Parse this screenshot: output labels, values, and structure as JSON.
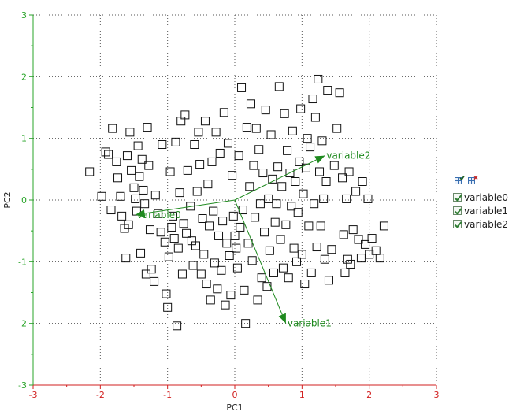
{
  "colors": {
    "axis_x": "#d11f1f",
    "axis_y": "#2aa52a",
    "grid": "#555555",
    "points": "#111111",
    "vectors": "#1f8a1f"
  },
  "legend": {
    "tools": [
      "select-all-icon",
      "deselect-all-icon"
    ],
    "items": [
      {
        "label": "variable0",
        "checked": true
      },
      {
        "label": "variable1",
        "checked": true
      },
      {
        "label": "variable2",
        "checked": true
      }
    ]
  },
  "chart_data": {
    "type": "scatter",
    "title": "",
    "xlabel": "PC1",
    "ylabel": "PC2",
    "xlim": [
      -3,
      3
    ],
    "ylim": [
      -3,
      3
    ],
    "xticks": [
      -3,
      -2,
      -1,
      0,
      1,
      2,
      3
    ],
    "yticks": [
      -3,
      -2,
      -1,
      0,
      1,
      2,
      3
    ],
    "grid": true,
    "legend_position": "right",
    "loading_vectors": [
      {
        "name": "variable0",
        "x": -1.48,
        "y": -0.24
      },
      {
        "name": "variable1",
        "x": 0.76,
        "y": -2.0
      },
      {
        "name": "variable2",
        "x": 1.34,
        "y": 0.72
      }
    ],
    "points": [
      [
        -2.16,
        0.46
      ],
      [
        -1.98,
        0.06
      ],
      [
        -1.92,
        0.78
      ],
      [
        -1.88,
        0.74
      ],
      [
        -1.84,
        -0.16
      ],
      [
        -1.82,
        1.16
      ],
      [
        -1.76,
        0.62
      ],
      [
        -1.74,
        0.36
      ],
      [
        -1.7,
        0.06
      ],
      [
        -1.68,
        -0.26
      ],
      [
        -1.64,
        -0.46
      ],
      [
        -1.62,
        -0.94
      ],
      [
        -1.6,
        0.72
      ],
      [
        -1.58,
        -0.4
      ],
      [
        -1.56,
        1.1
      ],
      [
        -1.54,
        0.48
      ],
      [
        -1.5,
        0.2
      ],
      [
        -1.48,
        0.02
      ],
      [
        -1.46,
        -0.18
      ],
      [
        -1.44,
        0.88
      ],
      [
        -1.42,
        0.38
      ],
      [
        -1.4,
        -0.86
      ],
      [
        -1.38,
        0.66
      ],
      [
        -1.36,
        0.16
      ],
      [
        -1.34,
        -0.06
      ],
      [
        -1.32,
        -1.2
      ],
      [
        -1.3,
        1.18
      ],
      [
        -1.28,
        0.56
      ],
      [
        -1.26,
        -0.48
      ],
      [
        -1.24,
        -1.12
      ],
      [
        -1.2,
        -1.32
      ],
      [
        -1.18,
        0.08
      ],
      [
        -1.14,
        -0.22
      ],
      [
        -1.1,
        -0.52
      ],
      [
        -1.08,
        0.9
      ],
      [
        -1.04,
        -0.68
      ],
      [
        -1.02,
        -1.52
      ],
      [
        -1.0,
        -1.74
      ],
      [
        -0.98,
        -0.92
      ],
      [
        -0.96,
        0.46
      ],
      [
        -0.94,
        -0.44
      ],
      [
        -0.92,
        -0.26
      ],
      [
        -0.9,
        -0.62
      ],
      [
        -0.88,
        0.94
      ],
      [
        -0.86,
        -2.04
      ],
      [
        -0.84,
        -0.78
      ],
      [
        -0.82,
        0.12
      ],
      [
        -0.8,
        1.28
      ],
      [
        -0.78,
        -1.2
      ],
      [
        -0.76,
        -0.38
      ],
      [
        -0.74,
        1.38
      ],
      [
        -0.72,
        -0.54
      ],
      [
        -0.7,
        0.48
      ],
      [
        -0.66,
        -0.1
      ],
      [
        -0.64,
        -0.66
      ],
      [
        -0.62,
        -1.06
      ],
      [
        -0.6,
        0.9
      ],
      [
        -0.58,
        -0.74
      ],
      [
        -0.56,
        0.14
      ],
      [
        -0.54,
        1.1
      ],
      [
        -0.52,
        0.58
      ],
      [
        -0.5,
        -1.2
      ],
      [
        -0.48,
        -0.3
      ],
      [
        -0.46,
        -0.88
      ],
      [
        -0.44,
        1.28
      ],
      [
        -0.42,
        -1.36
      ],
      [
        -0.4,
        0.26
      ],
      [
        -0.38,
        -0.42
      ],
      [
        -0.36,
        -1.62
      ],
      [
        -0.34,
        0.62
      ],
      [
        -0.32,
        -0.18
      ],
      [
        -0.3,
        -1.02
      ],
      [
        -0.28,
        1.1
      ],
      [
        -0.26,
        -1.44
      ],
      [
        -0.24,
        -0.58
      ],
      [
        -0.22,
        0.76
      ],
      [
        -0.2,
        -1.14
      ],
      [
        -0.18,
        -0.34
      ],
      [
        -0.16,
        1.42
      ],
      [
        -0.14,
        -1.7
      ],
      [
        -0.12,
        -0.7
      ],
      [
        -0.1,
        0.92
      ],
      [
        -0.08,
        -0.9
      ],
      [
        -0.06,
        -1.54
      ],
      [
        -0.04,
        0.4
      ],
      [
        -0.02,
        -0.26
      ],
      [
        0.0,
        -0.58
      ],
      [
        0.02,
        -0.78
      ],
      [
        0.04,
        -1.1
      ],
      [
        0.06,
        0.72
      ],
      [
        0.08,
        -0.44
      ],
      [
        0.1,
        1.82
      ],
      [
        0.12,
        -0.16
      ],
      [
        0.14,
        -1.46
      ],
      [
        0.16,
        -2.0
      ],
      [
        0.18,
        1.18
      ],
      [
        0.2,
        -0.7
      ],
      [
        0.22,
        0.22
      ],
      [
        0.24,
        1.56
      ],
      [
        0.26,
        -0.98
      ],
      [
        0.28,
        0.56
      ],
      [
        0.3,
        -0.28
      ],
      [
        0.32,
        1.16
      ],
      [
        0.34,
        -1.62
      ],
      [
        0.36,
        0.82
      ],
      [
        0.38,
        -0.06
      ],
      [
        0.4,
        -1.26
      ],
      [
        0.42,
        0.44
      ],
      [
        0.44,
        -0.52
      ],
      [
        0.46,
        1.46
      ],
      [
        0.48,
        -1.4
      ],
      [
        0.5,
        0.02
      ],
      [
        0.52,
        -0.82
      ],
      [
        0.54,
        1.06
      ],
      [
        0.56,
        0.34
      ],
      [
        0.58,
        -1.18
      ],
      [
        0.6,
        -0.36
      ],
      [
        0.62,
        -0.06
      ],
      [
        0.64,
        0.54
      ],
      [
        0.66,
        1.84
      ],
      [
        0.68,
        -0.64
      ],
      [
        0.7,
        0.22
      ],
      [
        0.72,
        -1.1
      ],
      [
        0.74,
        1.4
      ],
      [
        0.76,
        -0.4
      ],
      [
        0.78,
        0.8
      ],
      [
        0.8,
        -1.26
      ],
      [
        0.82,
        0.44
      ],
      [
        0.84,
        -0.1
      ],
      [
        0.86,
        1.12
      ],
      [
        0.88,
        -0.78
      ],
      [
        0.9,
        0.3
      ],
      [
        0.92,
        -1.0
      ],
      [
        0.94,
        -0.2
      ],
      [
        0.96,
        0.62
      ],
      [
        0.98,
        1.48
      ],
      [
        1.0,
        -0.88
      ],
      [
        1.02,
        0.1
      ],
      [
        1.04,
        -1.36
      ],
      [
        1.06,
        0.52
      ],
      [
        1.08,
        1.0
      ],
      [
        1.1,
        -0.42
      ],
      [
        1.12,
        0.86
      ],
      [
        1.14,
        -1.18
      ],
      [
        1.16,
        1.64
      ],
      [
        1.18,
        -0.06
      ],
      [
        1.2,
        1.34
      ],
      [
        1.22,
        -0.76
      ],
      [
        1.24,
        1.96
      ],
      [
        1.26,
        0.46
      ],
      [
        1.28,
        -0.42
      ],
      [
        1.3,
        0.96
      ],
      [
        1.32,
        0.02
      ],
      [
        1.34,
        -0.96
      ],
      [
        1.36,
        0.3
      ],
      [
        1.38,
        1.78
      ],
      [
        1.4,
        -1.3
      ],
      [
        1.44,
        -0.8
      ],
      [
        1.48,
        0.56
      ],
      [
        1.52,
        1.16
      ],
      [
        1.56,
        1.74
      ],
      [
        1.6,
        0.36
      ],
      [
        1.62,
        -0.56
      ],
      [
        1.64,
        -1.18
      ],
      [
        1.66,
        0.02
      ],
      [
        1.68,
        -0.96
      ],
      [
        1.7,
        0.46
      ],
      [
        1.72,
        -1.04
      ],
      [
        1.76,
        -0.48
      ],
      [
        1.8,
        0.14
      ],
      [
        1.84,
        -0.64
      ],
      [
        1.88,
        -0.94
      ],
      [
        1.9,
        0.3
      ],
      [
        1.94,
        -0.72
      ],
      [
        1.98,
        0.02
      ],
      [
        2.0,
        -0.88
      ],
      [
        2.04,
        -0.62
      ],
      [
        2.1,
        -0.82
      ],
      [
        2.16,
        -0.94
      ],
      [
        2.22,
        -0.42
      ]
    ]
  }
}
